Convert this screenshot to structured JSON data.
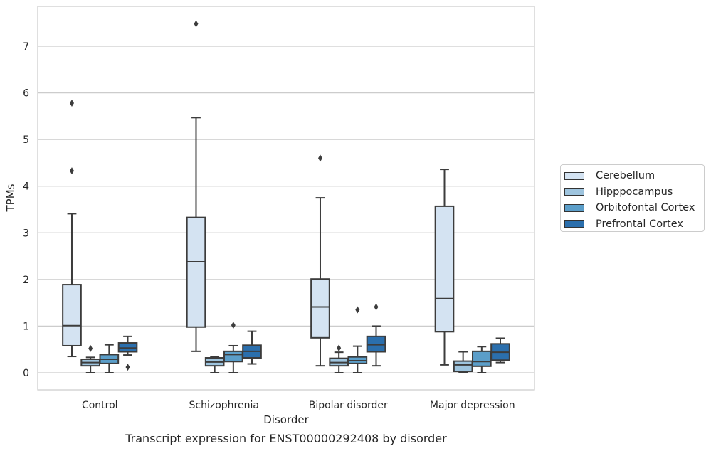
{
  "chart_data": {
    "type": "box",
    "title": "",
    "caption": "Transcript expression for ENST00000292408 by disorder",
    "xlabel": "Disorder",
    "ylabel": "TPMs",
    "ylim": [
      -0.35,
      7.85
    ],
    "yticks": [
      0,
      1,
      2,
      3,
      4,
      5,
      6,
      7
    ],
    "grid": "horizontal",
    "legend_position": "right",
    "categories": [
      "Control",
      "Schizophrenia",
      "Bipolar disorder",
      "Major depression"
    ],
    "series": [
      {
        "name": "Cerebellum",
        "color": "#d4e3f2",
        "boxes": [
          {
            "whislo": 0.35,
            "q1": 0.58,
            "med": 1.01,
            "q3": 1.89,
            "whishi": 3.41,
            "fliers": [
              4.33,
              5.78
            ]
          },
          {
            "whislo": 0.46,
            "q1": 0.98,
            "med": 2.38,
            "q3": 3.33,
            "whishi": 5.47,
            "fliers": [
              7.48
            ]
          },
          {
            "whislo": 0.15,
            "q1": 0.75,
            "med": 1.41,
            "q3": 2.01,
            "whishi": 3.75,
            "fliers": [
              4.6
            ]
          },
          {
            "whislo": 0.17,
            "q1": 0.88,
            "med": 1.59,
            "q3": 3.57,
            "whishi": 4.36,
            "fliers": []
          }
        ]
      },
      {
        "name": "Hipppocampus",
        "color": "#9ec4de",
        "boxes": [
          {
            "whislo": 0.0,
            "q1": 0.15,
            "med": 0.22,
            "q3": 0.29,
            "whishi": 0.33,
            "fliers": [
              0.52
            ]
          },
          {
            "whislo": 0.0,
            "q1": 0.15,
            "med": 0.23,
            "q3": 0.32,
            "whishi": 0.34,
            "fliers": []
          },
          {
            "whislo": 0.0,
            "q1": 0.15,
            "med": 0.22,
            "q3": 0.31,
            "whishi": 0.44,
            "fliers": [
              0.53
            ]
          },
          {
            "whislo": 0.0,
            "q1": 0.03,
            "med": 0.17,
            "q3": 0.25,
            "whishi": 0.45,
            "fliers": []
          }
        ]
      },
      {
        "name": "Orbitofontal Cortex",
        "color": "#5b9ec9",
        "boxes": [
          {
            "whislo": 0.0,
            "q1": 0.2,
            "med": 0.29,
            "q3": 0.39,
            "whishi": 0.6,
            "fliers": []
          },
          {
            "whislo": 0.0,
            "q1": 0.24,
            "med": 0.39,
            "q3": 0.46,
            "whishi": 0.58,
            "fliers": [
              1.02
            ]
          },
          {
            "whislo": 0.0,
            "q1": 0.2,
            "med": 0.26,
            "q3": 0.34,
            "whishi": 0.57,
            "fliers": [
              1.35
            ]
          },
          {
            "whislo": 0.0,
            "q1": 0.14,
            "med": 0.24,
            "q3": 0.46,
            "whishi": 0.56,
            "fliers": []
          }
        ]
      },
      {
        "name": "Prefrontal Cortex",
        "color": "#2b6fad",
        "boxes": [
          {
            "whislo": 0.38,
            "q1": 0.45,
            "med": 0.53,
            "q3": 0.64,
            "whishi": 0.78,
            "fliers": [
              0.12
            ]
          },
          {
            "whislo": 0.19,
            "q1": 0.32,
            "med": 0.46,
            "q3": 0.59,
            "whishi": 0.89,
            "fliers": []
          },
          {
            "whislo": 0.15,
            "q1": 0.45,
            "med": 0.6,
            "q3": 0.78,
            "whishi": 1.0,
            "fliers": [
              1.41
            ]
          },
          {
            "whislo": 0.22,
            "q1": 0.27,
            "med": 0.44,
            "q3": 0.62,
            "whishi": 0.74,
            "fliers": []
          }
        ]
      }
    ]
  }
}
